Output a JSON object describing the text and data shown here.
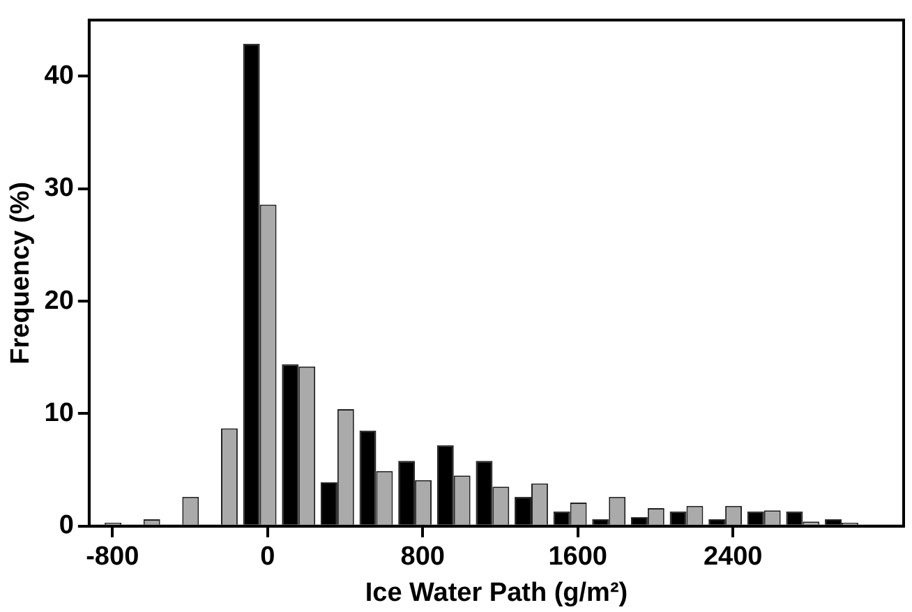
{
  "chart_data": {
    "type": "bar",
    "xlabel": "Ice Water Path (g/m²)",
    "ylabel": "Frequency (%)",
    "x": [
      -840,
      -640,
      -440,
      -240,
      -40,
      160,
      360,
      560,
      760,
      960,
      1160,
      1360,
      1560,
      1760,
      1960,
      2160,
      2360,
      2560,
      2760,
      2960
    ],
    "series": [
      {
        "color": "#000000",
        "values": [
          0,
          0,
          0,
          0,
          42.9,
          14.4,
          3.9,
          8.5,
          5.8,
          7.2,
          5.8,
          2.6,
          1.3,
          0.6,
          0.8,
          1.3,
          0.6,
          1.3,
          1.3,
          0.6
        ]
      },
      {
        "color": "#aaaaaa",
        "values": [
          0.3,
          0.6,
          2.6,
          8.7,
          28.6,
          14.2,
          10.4,
          4.9,
          4.1,
          4.5,
          3.5,
          3.8,
          2.1,
          2.6,
          1.6,
          1.8,
          1.8,
          1.4,
          0.4,
          0.3
        ]
      }
    ],
    "xlim": [
      -920,
      3280
    ],
    "xticks": [
      -800,
      0,
      800,
      1600,
      2400
    ],
    "ylim": [
      0,
      45
    ],
    "yticks": [
      0,
      10,
      20,
      30,
      40
    ],
    "grid": false,
    "legend": false
  }
}
